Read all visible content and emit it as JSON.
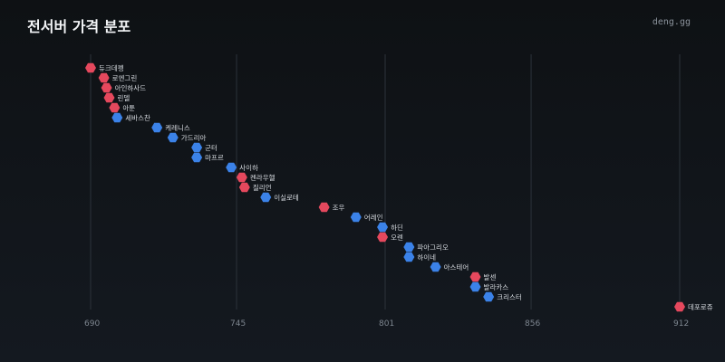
{
  "header": {
    "title": "전서버 가격 분포",
    "brand": "deng.gg"
  },
  "colors": {
    "red": "#e5485d",
    "blue": "#3b82e8"
  },
  "chart_data": {
    "type": "scatter",
    "title": "전서버 가격 분포",
    "xlabel": "",
    "ylabel": "",
    "xlim": [
      688,
      914
    ],
    "x_ticks": [
      690,
      745,
      801,
      856,
      912
    ],
    "grid": true,
    "legend": "none",
    "points": [
      {
        "label": "듀크데펭",
        "x": 690,
        "color": "red"
      },
      {
        "label": "로엔그린",
        "x": 695,
        "color": "red"
      },
      {
        "label": "아인하사드",
        "x": 696,
        "color": "red"
      },
      {
        "label": "린델",
        "x": 697,
        "color": "red"
      },
      {
        "label": "아툰",
        "x": 699,
        "color": "red"
      },
      {
        "label": "세바스찬",
        "x": 700,
        "color": "blue"
      },
      {
        "label": "케레니스",
        "x": 715,
        "color": "blue"
      },
      {
        "label": "가드리아",
        "x": 721,
        "color": "blue"
      },
      {
        "label": "군터",
        "x": 730,
        "color": "blue"
      },
      {
        "label": "마프르",
        "x": 730,
        "color": "blue"
      },
      {
        "label": "사이하",
        "x": 743,
        "color": "blue"
      },
      {
        "label": "켄라우헬",
        "x": 747,
        "color": "red"
      },
      {
        "label": "질리언",
        "x": 748,
        "color": "red"
      },
      {
        "label": "이실로테",
        "x": 756,
        "color": "blue"
      },
      {
        "label": "조우",
        "x": 778,
        "color": "red"
      },
      {
        "label": "어레인",
        "x": 790,
        "color": "blue"
      },
      {
        "label": "하딘",
        "x": 800,
        "color": "blue"
      },
      {
        "label": "오렌",
        "x": 800,
        "color": "red"
      },
      {
        "label": "파아그리오",
        "x": 810,
        "color": "blue"
      },
      {
        "label": "하이네",
        "x": 810,
        "color": "blue"
      },
      {
        "label": "아스테어",
        "x": 820,
        "color": "blue"
      },
      {
        "label": "발센",
        "x": 835,
        "color": "red"
      },
      {
        "label": "발라카스",
        "x": 835,
        "color": "blue"
      },
      {
        "label": "크리스터",
        "x": 840,
        "color": "blue"
      },
      {
        "label": "데포로쥬",
        "x": 912,
        "color": "red"
      }
    ]
  }
}
